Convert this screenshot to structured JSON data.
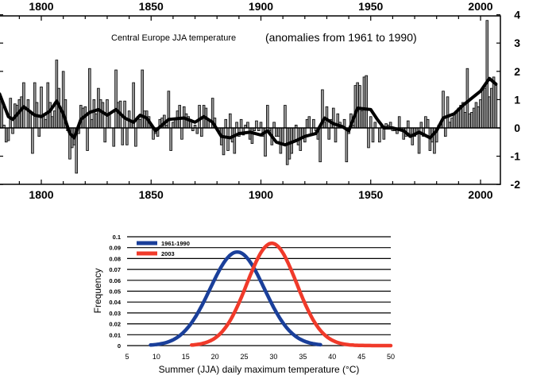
{
  "chart_data": [
    {
      "type": "bar",
      "title": "Central Europe JJA temperature",
      "subtitle": "(anomalies from 1961 to 1990)",
      "xlabel": "",
      "ylabel": "",
      "xlim": [
        1781,
        2009
      ],
      "ylim": [
        -2,
        4
      ],
      "x_ticks": [
        "1800",
        "1850",
        "1900",
        "1950",
        "2000"
      ],
      "y_ticks": [
        "4",
        "3",
        "2",
        "1",
        "0",
        "-1",
        "-2"
      ],
      "grid": false,
      "start_year": 1781,
      "annual_values": [
        1.2,
        1.0,
        0.1,
        -0.5,
        -0.45,
        1.05,
        -0.2,
        0.85,
        0.8,
        1.0,
        1.1,
        1.6,
        0.0,
        1.0,
        0.6,
        -0.9,
        1.6,
        0.9,
        -0.3,
        1.45,
        0.5,
        0.3,
        1.6,
        0.9,
        0.4,
        0.6,
        2.4,
        1.4,
        0.6,
        2.0,
        1.0,
        -0.1,
        -1.1,
        -0.7,
        -0.6,
        -1.6,
        -0.2,
        0.8,
        0.7,
        0.75,
        -0.8,
        2.1,
        0.3,
        1.0,
        0.5,
        1.4,
        1.0,
        0.9,
        -0.5,
        1.0,
        0.5,
        0.0,
        -0.65,
        2.05,
        0.9,
        0.95,
        -0.6,
        0.95,
        -0.6,
        0.6,
        0.2,
        1.6,
        -0.65,
        0.4,
        0.3,
        2.05,
        0.6,
        0.6,
        0.4,
        0.1,
        -0.4,
        -0.2,
        -0.3,
        0.3,
        0.35,
        0.45,
        0.1,
        1.3,
        -0.8,
        0.2,
        0.35,
        0.6,
        0.8,
        -0.4,
        0.75,
        0.5,
        0.4,
        0.3,
        -0.1,
        0.1,
        -0.2,
        0.8,
        -0.3,
        0.8,
        0.7,
        0.3,
        0.0,
        1.05,
        0.35,
        0.0,
        -0.2,
        -0.6,
        -0.95,
        0.3,
        -0.8,
        0.5,
        -0.5,
        -0.9,
        0.2,
        -0.3,
        0.3,
        -0.25,
        0.1,
        0.2,
        -0.4,
        -0.55,
        -0.1,
        0.25,
        -0.1,
        0.2,
        -0.3,
        -1.0,
        0.8,
        -0.1,
        -0.6,
        0.2,
        -0.3,
        -0.3,
        -0.9,
        -0.6,
        0.8,
        -1.3,
        -1.1,
        -0.9,
        -0.5,
        0.1,
        -0.6,
        -0.8,
        -0.3,
        -0.5,
        0.3,
        0.4,
        -0.2,
        0.3,
        -0.1,
        -0.4,
        -1.2,
        1.35,
        0.2,
        0.75,
        -0.4,
        0.3,
        0.7,
        -0.5,
        0.5,
        0.2,
        0.0,
        0.3,
        -1.2,
        -0.2,
        0.5,
        0.1,
        1.5,
        1.6,
        1.5,
        0.6,
        1.8,
        1.85,
        -0.7,
        0.4,
        -0.5,
        0.2,
        0.0,
        -0.5,
        0.1,
        -0.4,
        0.15,
        0.1,
        0.2,
        -0.1,
        -0.1,
        -0.2,
        0.4,
        0.0,
        -0.4,
        -0.3,
        0.25,
        -0.2,
        -0.6,
        -0.3,
        -0.2,
        -0.9,
        0.2,
        -0.3,
        0.4,
        0.3,
        -0.8,
        -0.5,
        -0.9,
        -0.5,
        0.1,
        0.2,
        1.3,
        -0.3,
        1.1,
        0.2,
        0.35,
        0.5,
        0.6,
        0.7,
        0.8,
        0.9,
        0.55,
        2.1,
        0.5,
        0.55,
        0.7,
        0.9,
        0.75,
        1.0,
        1.35,
        1.4,
        3.8,
        1.1,
        1.4,
        1.8,
        1.55
      ],
      "smoothed": {
        "years": [
          1781,
          1785,
          1787,
          1792,
          1797,
          1800,
          1804,
          1807,
          1810,
          1813,
          1815,
          1818,
          1822,
          1826,
          1830,
          1834,
          1838,
          1842,
          1845,
          1848,
          1852,
          1855,
          1858,
          1865,
          1870,
          1874,
          1878,
          1882,
          1886,
          1890,
          1895,
          1900,
          1903,
          1907,
          1911,
          1916,
          1920,
          1925,
          1929,
          1933,
          1937,
          1940,
          1944,
          1950,
          1953,
          1956,
          1960,
          1965,
          1968,
          1972,
          1977,
          1980,
          1983,
          1988,
          1992,
          1996,
          2000,
          2004,
          2007
        ],
        "values": [
          1.2,
          0.4,
          0.3,
          0.75,
          0.45,
          0.4,
          0.6,
          0.95,
          0.5,
          -0.2,
          -0.35,
          0.3,
          0.55,
          0.65,
          0.45,
          0.65,
          0.35,
          0.2,
          0.45,
          0.35,
          -0.1,
          0.1,
          0.3,
          0.35,
          0.2,
          0.4,
          0.2,
          -0.3,
          -0.35,
          -0.2,
          -0.15,
          -0.25,
          -0.1,
          -0.5,
          -0.6,
          -0.45,
          -0.3,
          -0.2,
          0.35,
          0.15,
          0.05,
          -0.1,
          0.7,
          0.65,
          0.3,
          0.0,
          0.0,
          -0.1,
          -0.3,
          -0.15,
          -0.35,
          -0.1,
          0.35,
          0.5,
          0.8,
          1.05,
          1.3,
          1.75,
          1.55
        ]
      }
    },
    {
      "type": "line",
      "xlabel": "Summer (JJA) daily maximum temperature (°C)",
      "ylabel": "Frequency",
      "xlim": [
        5,
        50
      ],
      "ylim": [
        0,
        0.1
      ],
      "x_ticks": [
        "5",
        "10",
        "15",
        "20",
        "25",
        "30",
        "35",
        "40",
        "45",
        "50"
      ],
      "y_ticks": [
        "0.1",
        "0.09",
        "0.08",
        "0.07",
        "0.06",
        "0.05",
        "0.04",
        "0.03",
        "0.02",
        "0.01",
        "0"
      ],
      "grid": true,
      "legend": "top-left",
      "series": [
        {
          "name": "1961-1990",
          "color": "#1a3f9a",
          "distribution": "normal",
          "mean": 23.8,
          "peak": 0.086,
          "x_range": [
            9,
            38
          ]
        },
        {
          "name": "2003",
          "color": "#f03a2a",
          "distribution": "normal",
          "mean": 29.7,
          "peak": 0.094,
          "x_range": [
            16,
            50
          ]
        }
      ]
    }
  ]
}
